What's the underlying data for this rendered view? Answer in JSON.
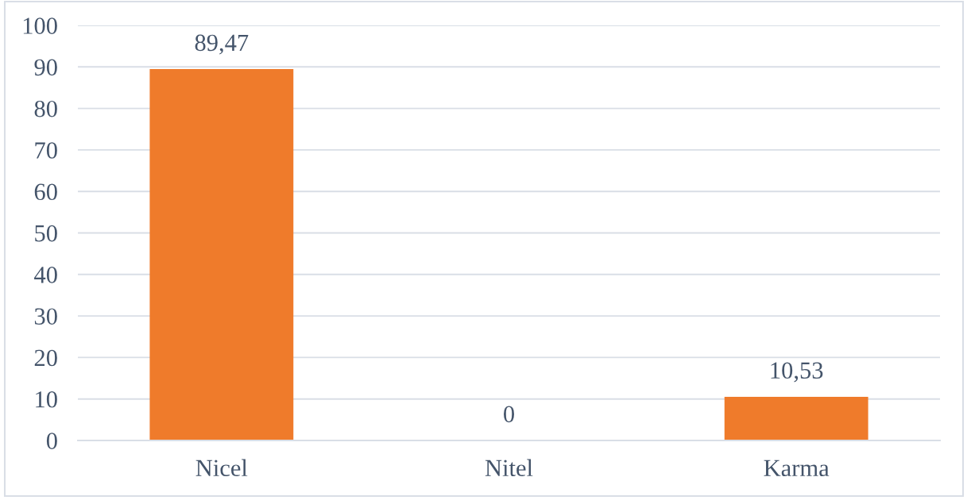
{
  "chart_data": {
    "type": "bar",
    "categories": [
      "Nicel",
      "Nitel",
      "Karma"
    ],
    "values": [
      89.47,
      0,
      10.53
    ],
    "value_labels": [
      "89,47",
      "0",
      "10,53"
    ],
    "color": "#ef7b2b",
    "ylim": [
      0,
      100
    ],
    "yticks": [
      0,
      10,
      20,
      30,
      40,
      50,
      60,
      70,
      80,
      90,
      100
    ],
    "grid": "y",
    "legend": false
  }
}
